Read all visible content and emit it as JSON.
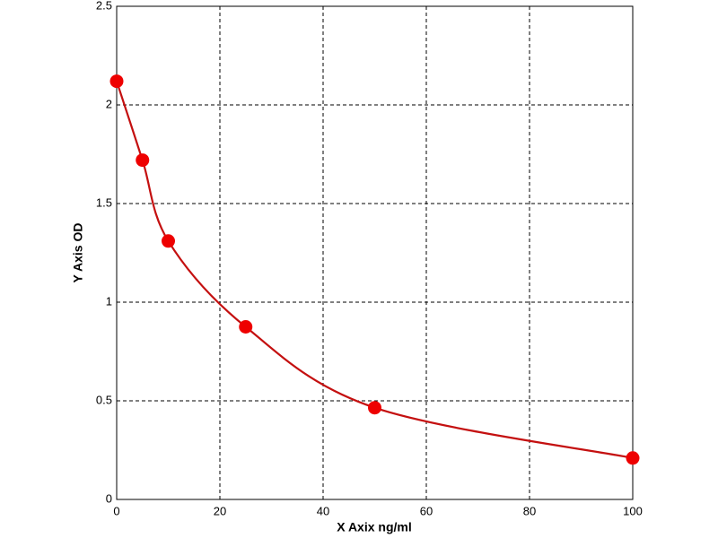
{
  "chart_data": {
    "type": "scatter",
    "x_label": "X Axix ng/ml",
    "y_label": "Y Axis OD",
    "x": [
      0,
      5,
      10,
      25,
      50,
      100
    ],
    "series": [
      {
        "color": "#ee0000",
        "values": [
          2.12,
          1.72,
          1.31,
          0.875,
          0.465,
          0.21
        ]
      }
    ],
    "curve": true,
    "curve_color": "#c41010",
    "xlim": [
      0,
      100
    ],
    "xticks": [
      0,
      20,
      40,
      60,
      80,
      100
    ],
    "ylim": [
      0,
      2.5
    ],
    "yticks": [
      0,
      0.5,
      1,
      1.5,
      2,
      2.5
    ],
    "grid": true
  }
}
